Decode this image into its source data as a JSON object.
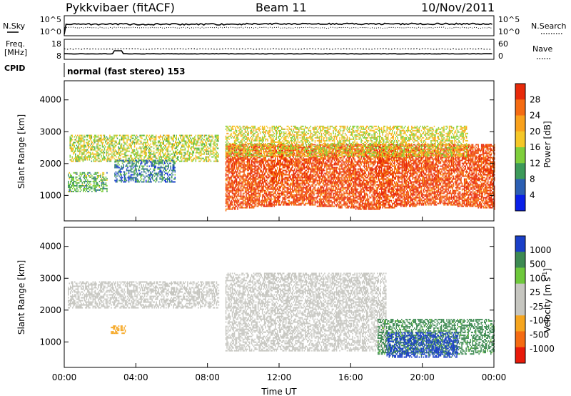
{
  "header": {
    "radar": "Pykkvibaer (fitACF)",
    "beam": "Beam 11",
    "date": "10/Nov/2011"
  },
  "strips": {
    "nsky_label": "N.Sky",
    "nsearch_label": "N.Search",
    "freq_label_line1": "Freq.",
    "freq_label_line2": "[MHz]",
    "nave_label": "Nave",
    "cpid_label": "CPID",
    "cpid_value": "normal (fast stereo) 153",
    "noise_left_ticks": [
      "10^5",
      "10^0"
    ],
    "noise_right_ticks": [
      "10^5",
      "10^0"
    ],
    "freq_left_ticks": [
      "18",
      "8"
    ],
    "nave_right_ticks": [
      "60",
      "0"
    ]
  },
  "chart_data": [
    {
      "type": "heatmap",
      "panel": "power",
      "ylabel": "Slant Range [km]",
      "ylim": [
        200,
        4600
      ],
      "yticks": [
        1000,
        2000,
        3000,
        4000
      ],
      "xlim": [
        0,
        24
      ],
      "xticks": [
        "00:00",
        "04:00",
        "08:00",
        "12:00",
        "16:00",
        "20:00",
        "00:00"
      ],
      "colorbar": {
        "label": "Power [dB]",
        "ticks": [
          "28",
          "24",
          "20",
          "16",
          "12",
          "8",
          "4"
        ],
        "colors": [
          "#e82a0a",
          "#f56b12",
          "#f9a11c",
          "#f5c727",
          "#7fcf3c",
          "#3d9a5a",
          "#2c5fb3",
          "#0a20e8"
        ]
      },
      "regions": [
        {
          "desc": "mid range echoes 01-08 UT",
          "t0": 0.3,
          "t1": 8.6,
          "r0": 2050,
          "r1": 2900,
          "value_db": 14
        },
        {
          "desc": "near range echoes 00-02 UT",
          "t0": 0.2,
          "t1": 2.4,
          "r0": 1100,
          "r1": 1700,
          "value_db": 10
        },
        {
          "desc": "scattered echoes 03-06 UT",
          "t0": 2.8,
          "t1": 6.2,
          "r0": 1400,
          "r1": 2100,
          "value_db": 6
        },
        {
          "desc": "strong ionospheric echoes 09-24 UT",
          "t0": 9.0,
          "t1": 24.0,
          "r0": 500,
          "r1": 2600,
          "value_db": 26
        },
        {
          "desc": "upper range streaks 09-22 UT",
          "t0": 9.0,
          "t1": 22.5,
          "r0": 2200,
          "r1": 3150,
          "value_db": 15
        }
      ]
    },
    {
      "type": "heatmap",
      "panel": "velocity",
      "ylabel": "Slant Range [km]",
      "ylim": [
        200,
        4600
      ],
      "yticks": [
        1000,
        2000,
        3000,
        4000
      ],
      "xlim": [
        0,
        24
      ],
      "xticks": [
        "00:00",
        "04:00",
        "08:00",
        "12:00",
        "16:00",
        "20:00",
        "00:00"
      ],
      "xlabel": "Time UT",
      "colorbar": {
        "label": "Velocity [m s",
        "label_sup": "-1",
        "label_end": "]",
        "ticks": [
          "1000",
          "500",
          "100",
          "25",
          "-25",
          "-100",
          "-500",
          "-1000"
        ],
        "colors": [
          "#1a3fc8",
          "#3d8a52",
          "#6ec83c",
          "#c6c6c0",
          "#c6c6c0",
          "#f6a51e",
          "#f56b12",
          "#e81a0a"
        ]
      },
      "regions": [
        {
          "desc": "ground scatter band",
          "t0": 0.2,
          "t1": 8.6,
          "r0": 2050,
          "r1": 2900,
          "value_ms": 0
        },
        {
          "desc": "ground scatter main 09-18 UT",
          "t0": 9.0,
          "t1": 18.0,
          "r0": 700,
          "r1": 3150,
          "value_ms": 0
        },
        {
          "desc": "negative velocity patch 03 UT",
          "t0": 2.6,
          "t1": 3.4,
          "r0": 1250,
          "r1": 1500,
          "value_ms": -100
        },
        {
          "desc": "positive velocity 17-24 UT",
          "t0": 17.5,
          "t1": 24.0,
          "r0": 600,
          "r1": 1700,
          "value_ms": 400
        },
        {
          "desc": "strong positive velocity 18-22 UT",
          "t0": 18.0,
          "t1": 22.0,
          "r0": 500,
          "r1": 1300,
          "value_ms": 1000
        }
      ]
    }
  ]
}
